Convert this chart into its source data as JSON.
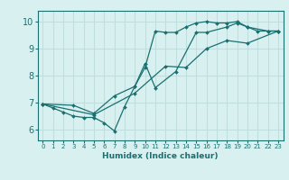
{
  "xlabel": "Humidex (Indice chaleur)",
  "bg_color": "#d8f0f0",
  "grid_color": "#c0dede",
  "line_color": "#1a7070",
  "xlim": [
    -0.5,
    23.5
  ],
  "ylim": [
    5.6,
    10.4
  ],
  "xticks": [
    0,
    1,
    2,
    3,
    4,
    5,
    6,
    7,
    8,
    9,
    10,
    11,
    12,
    13,
    14,
    15,
    16,
    17,
    18,
    19,
    20,
    21,
    22,
    23
  ],
  "yticks": [
    6,
    7,
    8,
    9,
    10
  ],
  "series": [
    {
      "x": [
        0,
        1,
        2,
        3,
        4,
        5,
        6,
        7,
        8,
        9,
        10,
        11,
        12,
        13,
        14,
        15,
        16,
        17,
        18,
        19,
        20,
        21,
        22,
        23
      ],
      "y": [
        6.95,
        6.8,
        6.65,
        6.5,
        6.45,
        6.45,
        6.25,
        5.95,
        6.85,
        7.6,
        8.3,
        9.65,
        9.6,
        9.6,
        9.8,
        9.95,
        10.0,
        9.95,
        9.95,
        10.0,
        9.8,
        9.65,
        9.65,
        9.65
      ]
    },
    {
      "x": [
        0,
        3,
        5,
        7,
        9,
        10,
        11,
        13,
        15,
        16,
        18,
        19,
        20,
        22,
        23
      ],
      "y": [
        6.95,
        6.9,
        6.6,
        7.25,
        7.6,
        8.45,
        7.55,
        8.15,
        9.6,
        9.6,
        9.8,
        9.95,
        9.8,
        9.65,
        9.65
      ]
    },
    {
      "x": [
        0,
        5,
        9,
        12,
        14,
        16,
        18,
        20,
        23
      ],
      "y": [
        6.95,
        6.55,
        7.35,
        8.35,
        8.3,
        9.0,
        9.3,
        9.2,
        9.65
      ]
    }
  ]
}
